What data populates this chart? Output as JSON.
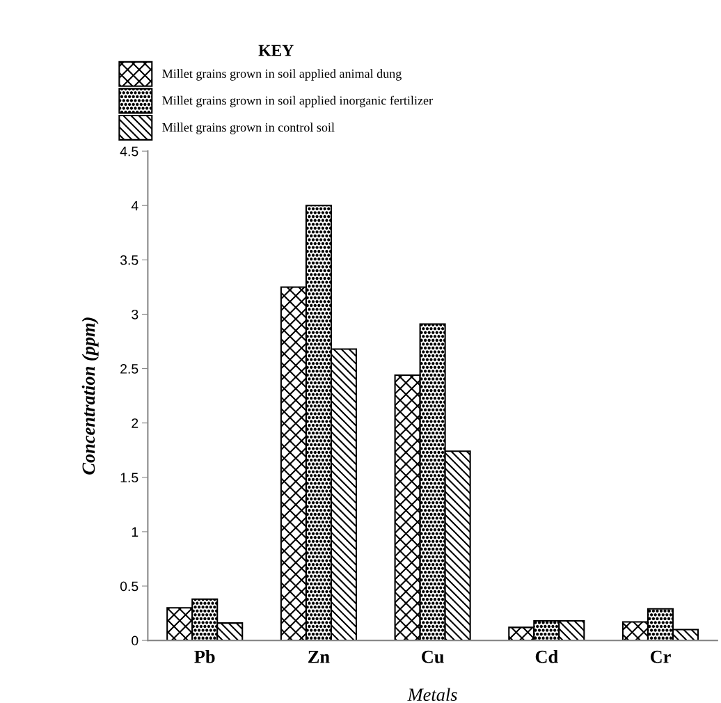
{
  "chart_data": {
    "type": "bar",
    "xlabel": "Metals",
    "ylabel": "Concentration (ppm)",
    "legend_title": "KEY",
    "categories": [
      "Pb",
      "Zn",
      "Cu",
      "Cd",
      "Cr"
    ],
    "series": [
      {
        "name": "Millet grains grown in soil applied animal dung",
        "color": "#000000",
        "values": [
          0.3,
          3.25,
          2.44,
          0.12,
          0.17
        ]
      },
      {
        "name": "Millet grains grown in soil applied inorganic fertilizer",
        "color": "#000000",
        "values": [
          0.38,
          4.0,
          2.91,
          0.18,
          0.29
        ]
      },
      {
        "name": "Millet grains grown in control soil",
        "color": "#000000",
        "values": [
          0.16,
          2.68,
          1.74,
          0.18,
          0.1
        ]
      }
    ],
    "ylim": [
      0,
      4.5
    ],
    "yticks": [
      0,
      0.5,
      1,
      1.5,
      2,
      2.5,
      3,
      3.5,
      4,
      4.5
    ],
    "grid": false,
    "legend": "top left"
  }
}
